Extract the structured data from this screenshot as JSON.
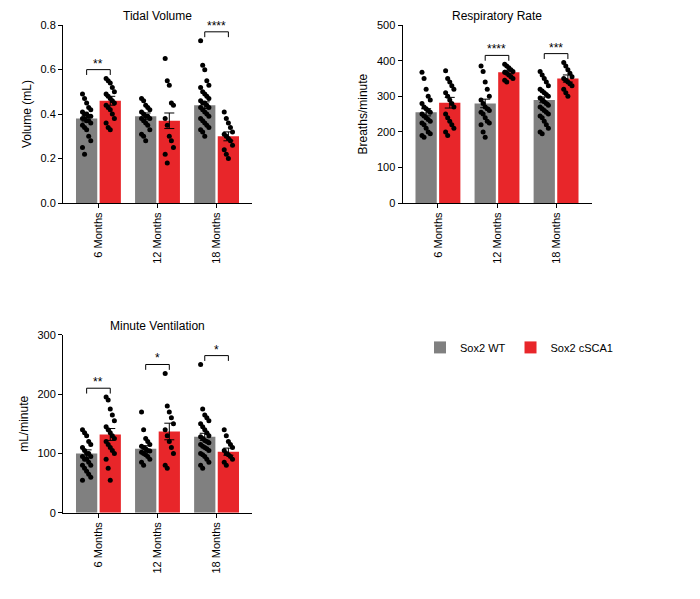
{
  "chart_data": [
    {
      "type": "bar",
      "title": "Tidal Volume",
      "y_label": "Volume (mL)",
      "categories": [
        "6 Months",
        "12 Months",
        "18 Months"
      ],
      "ylim": [
        0,
        0.8
      ],
      "yticks": [
        {
          "value": 0,
          "label": "0.0"
        },
        0.2,
        0.4,
        0.6,
        0.8
      ],
      "grid": false,
      "series": [
        {
          "name": "Sox2 WT",
          "color": "#808080",
          "values": [
            0.38,
            0.39,
            0.44
          ],
          "errors": [
            0.015,
            0.015,
            0.015
          ],
          "points": [
            [
              0.49,
              0.47,
              0.45,
              0.43,
              0.42,
              0.41,
              0.4,
              0.4,
              0.39,
              0.39,
              0.38,
              0.38,
              0.37,
              0.37,
              0.36,
              0.35,
              0.34,
              0.33,
              0.3,
              0.28,
              0.25,
              0.22
            ],
            [
              0.47,
              0.46,
              0.44,
              0.43,
              0.42,
              0.41,
              0.4,
              0.39,
              0.39,
              0.38,
              0.38,
              0.37,
              0.36,
              0.35,
              0.33,
              0.31,
              0.3,
              0.28
            ],
            [
              0.73,
              0.62,
              0.6,
              0.55,
              0.53,
              0.52,
              0.5,
              0.49,
              0.48,
              0.47,
              0.46,
              0.45,
              0.45,
              0.44,
              0.43,
              0.43,
              0.42,
              0.41,
              0.4,
              0.39,
              0.38,
              0.37,
              0.36,
              0.35,
              0.34,
              0.33,
              0.32,
              0.3
            ]
          ]
        },
        {
          "name": "Sox2 cSCA1",
          "color": "#e8262a",
          "values": [
            0.46,
            0.37,
            0.3
          ],
          "errors": [
            0.02,
            0.035,
            0.02
          ],
          "points": [
            [
              0.56,
              0.55,
              0.54,
              0.52,
              0.5,
              0.49,
              0.48,
              0.47,
              0.46,
              0.45,
              0.44,
              0.43,
              0.42,
              0.4,
              0.38,
              0.36,
              0.34,
              0.33
            ],
            [
              0.65,
              0.55,
              0.53,
              0.45,
              0.44,
              0.38,
              0.35,
              0.3,
              0.28,
              0.25,
              0.22,
              0.18
            ],
            [
              0.41,
              0.38,
              0.36,
              0.34,
              0.32,
              0.31,
              0.3,
              0.29,
              0.28,
              0.26,
              0.24,
              0.22,
              0.2
            ]
          ]
        }
      ],
      "annotations": [
        {
          "category": "6 Months",
          "label": "**"
        },
        {
          "category": "18 Months",
          "label": "****"
        }
      ]
    },
    {
      "type": "bar",
      "title": "Respiratory Rate",
      "y_label": "Breaths/minute",
      "categories": [
        "6 Months",
        "12 Months",
        "18 Months"
      ],
      "ylim": [
        0,
        500
      ],
      "yticks": [
        0,
        100,
        200,
        300,
        400,
        500
      ],
      "grid": false,
      "series": [
        {
          "name": "Sox2 WT",
          "color": "#808080",
          "values": [
            255,
            280,
            290
          ],
          "errors": [
            10,
            12,
            8
          ],
          "points": [
            [
              368,
              350,
              320,
              300,
              290,
              280,
              270,
              265,
              260,
              255,
              250,
              245,
              240,
              235,
              230,
              225,
              220,
              210,
              200,
              195,
              190,
              185
            ],
            [
              385,
              370,
              340,
              320,
              300,
              290,
              280,
              270,
              265,
              260,
              255,
              250,
              240,
              230,
              225,
              220,
              200,
              185
            ],
            [
              370,
              360,
              350,
              340,
              330,
              320,
              315,
              310,
              305,
              300,
              295,
              290,
              285,
              280,
              275,
              270,
              265,
              260,
              255,
              250,
              245,
              240,
              230,
              220,
              210,
              200,
              195
            ]
          ]
        },
        {
          "name": "Sox2 cSCA1",
          "color": "#e8262a",
          "values": [
            282,
            368,
            350
          ],
          "errors": [
            15,
            5,
            10
          ],
          "points": [
            [
              372,
              350,
              340,
              330,
              320,
              310,
              300,
              290,
              280,
              270,
              250,
              240,
              230,
              220,
              210,
              200,
              190
            ],
            [
              390,
              385,
              380,
              375,
              370,
              368,
              365,
              360,
              355,
              350,
              345,
              340
            ],
            [
              395,
              385,
              375,
              365,
              355,
              350,
              345,
              340,
              335,
              330,
              320,
              310,
              300
            ]
          ]
        }
      ],
      "annotations": [
        {
          "category": "12 Months",
          "label": "****"
        },
        {
          "category": "18 Months",
          "label": "***"
        }
      ]
    },
    {
      "type": "bar",
      "title": "Minute Ventilation",
      "y_label": "mL/minute",
      "categories": [
        "6 Months",
        "12 Months",
        "18 Months"
      ],
      "ylim": [
        0,
        300
      ],
      "yticks": [
        0,
        100,
        200,
        300
      ],
      "grid": false,
      "legend": "right",
      "series": [
        {
          "name": "Sox2 WT",
          "color": "#808080",
          "values": [
            100,
            108,
            128
          ],
          "errors": [
            6,
            5,
            6
          ],
          "points": [
            [
              140,
              135,
              130,
              120,
              115,
              110,
              105,
              100,
              100,
              95,
              95,
              90,
              90,
              85,
              80,
              80,
              75,
              70,
              65,
              60,
              55
            ],
            [
              170,
              140,
              125,
              120,
              115,
              112,
              110,
              108,
              105,
              104,
              102,
              100,
              98,
              95,
              90,
              85,
              80
            ],
            [
              250,
              175,
              165,
              160,
              155,
              150,
              145,
              140,
              135,
              130,
              128,
              125,
              122,
              120,
              118,
              115,
              112,
              110,
              108,
              105,
              100,
              98,
              95,
              90,
              85,
              80,
              75
            ]
          ]
        },
        {
          "name": "Sox2 cSCA1",
          "color": "#e8262a",
          "values": [
            132,
            137,
            103
          ],
          "errors": [
            10,
            14,
            6
          ],
          "points": [
            [
              195,
              190,
              175,
              165,
              155,
              145,
              140,
              135,
              130,
              125,
              120,
              115,
              110,
              105,
              100,
              90,
              75,
              55
            ],
            [
              235,
              180,
              170,
              160,
              150,
              140,
              130,
              120,
              110,
              100,
              80,
              75
            ],
            [
              140,
              130,
              120,
              115,
              110,
              105,
              100,
              98,
              95,
              90,
              85,
              80
            ]
          ]
        }
      ],
      "annotations": [
        {
          "category": "6 Months",
          "label": "**"
        },
        {
          "category": "12 Months",
          "label": "*"
        },
        {
          "category": "18 Months",
          "label": "*"
        }
      ]
    }
  ]
}
